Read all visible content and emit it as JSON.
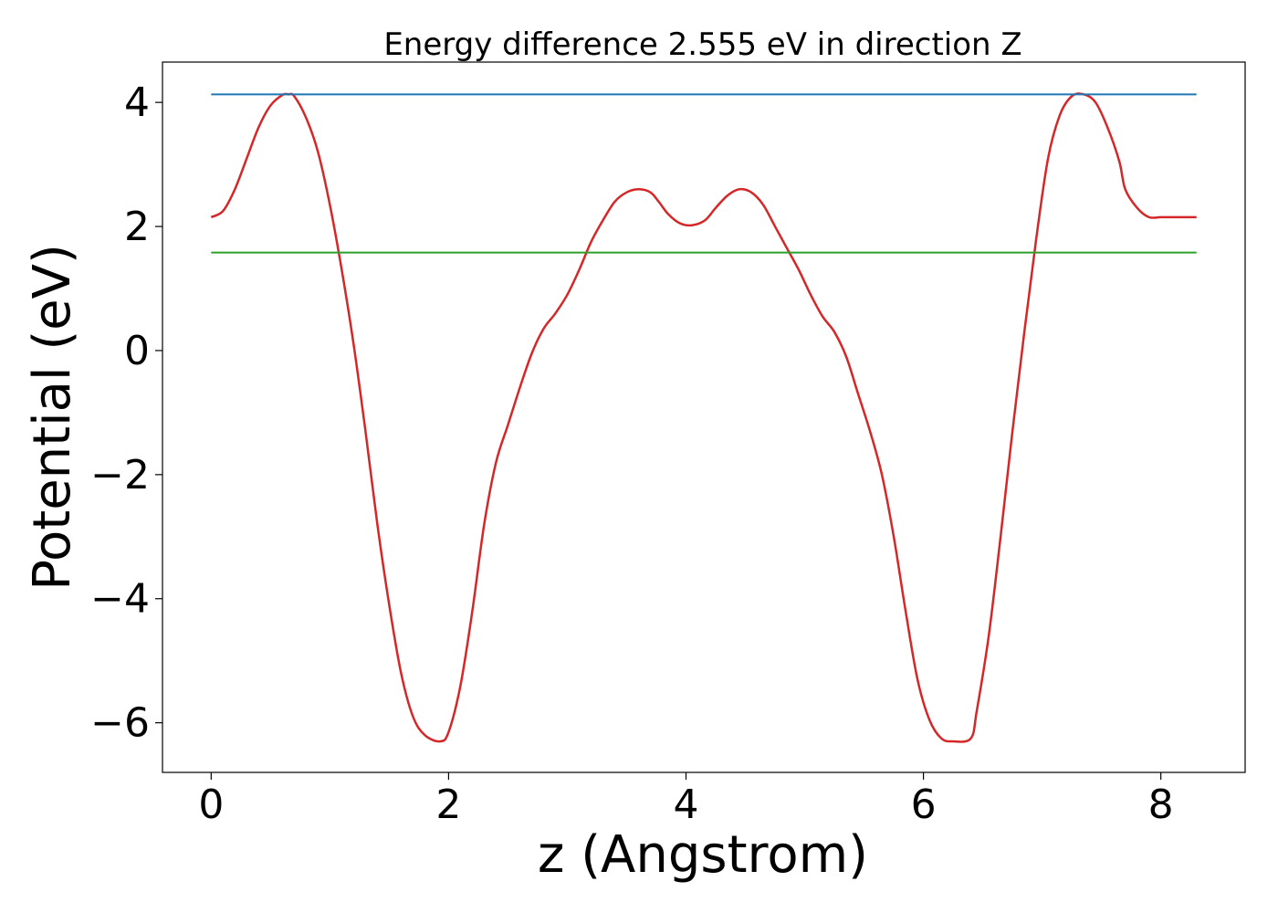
{
  "chart_data": {
    "type": "line",
    "title": "Energy difference 2.555 eV in direction Z",
    "xlabel": "z (Angstrom)",
    "ylabel": "Potential (eV)",
    "xlim": [
      -0.41,
      8.71
    ],
    "ylim": [
      -6.8,
      4.65
    ],
    "xticks": [
      0,
      2,
      4,
      6,
      8
    ],
    "yticks": [
      -6,
      -4,
      -2,
      0,
      2,
      4
    ],
    "xtick_labels": [
      "0",
      "2",
      "4",
      "6",
      "8"
    ],
    "ytick_labels": [
      "−6",
      "−4",
      "−2",
      "0",
      "2",
      "4"
    ],
    "grid": false,
    "colors": {
      "potential": "#d62728",
      "vacuum": "#1f77b4",
      "fermi": "#2ca02c"
    },
    "series": [
      {
        "x": [
          0.0,
          0.1,
          0.2,
          0.3,
          0.4,
          0.5,
          0.6,
          0.65,
          0.7,
          0.8,
          0.9,
          1.0,
          1.1,
          1.2,
          1.3,
          1.4,
          1.5,
          1.6,
          1.7,
          1.8,
          1.93,
          2.0,
          2.1,
          2.2,
          2.3,
          2.4,
          2.5,
          2.6,
          2.7,
          2.8,
          2.9,
          3.0,
          3.1,
          3.2,
          3.3,
          3.4,
          3.5,
          3.6,
          3.7,
          3.77,
          3.85,
          3.95,
          4.05,
          4.16,
          4.25,
          4.35,
          4.45,
          4.55,
          4.65,
          4.75,
          4.85,
          4.95,
          5.05,
          5.15,
          5.25,
          5.35,
          5.45,
          5.55,
          5.65,
          5.75,
          5.85,
          5.95,
          6.05,
          6.15,
          6.25,
          6.4,
          6.45,
          6.55,
          6.65,
          6.75,
          6.85,
          6.95,
          7.05,
          7.15,
          7.25,
          7.35,
          7.45,
          7.55,
          7.65,
          7.7,
          7.8,
          7.9,
          8.0,
          8.1,
          8.2,
          8.3
        ],
        "y": [
          2.15,
          2.25,
          2.6,
          3.1,
          3.6,
          3.95,
          4.12,
          4.13,
          4.1,
          3.75,
          3.2,
          2.35,
          1.3,
          0.1,
          -1.3,
          -2.8,
          -4.1,
          -5.2,
          -5.9,
          -6.2,
          -6.3,
          -6.15,
          -5.4,
          -4.2,
          -2.8,
          -1.8,
          -1.2,
          -0.6,
          -0.05,
          0.35,
          0.6,
          0.9,
          1.3,
          1.75,
          2.1,
          2.4,
          2.55,
          2.6,
          2.55,
          2.4,
          2.2,
          2.05,
          2.02,
          2.1,
          2.3,
          2.5,
          2.6,
          2.55,
          2.35,
          2.0,
          1.65,
          1.3,
          0.9,
          0.55,
          0.3,
          -0.1,
          -0.7,
          -1.3,
          -2.0,
          -3.0,
          -4.2,
          -5.3,
          -5.95,
          -6.25,
          -6.3,
          -6.25,
          -5.8,
          -4.6,
          -3.0,
          -1.3,
          0.3,
          1.8,
          3.1,
          3.8,
          4.1,
          4.13,
          4.0,
          3.6,
          3.05,
          2.6,
          2.3,
          2.15,
          2.15,
          2.15,
          2.15,
          2.15
        ]
      },
      {
        "x": [
          0,
          8.3
        ],
        "y": [
          4.13,
          4.13
        ]
      },
      {
        "x": [
          0,
          8.3
        ],
        "y": [
          1.58,
          1.58
        ]
      }
    ]
  }
}
